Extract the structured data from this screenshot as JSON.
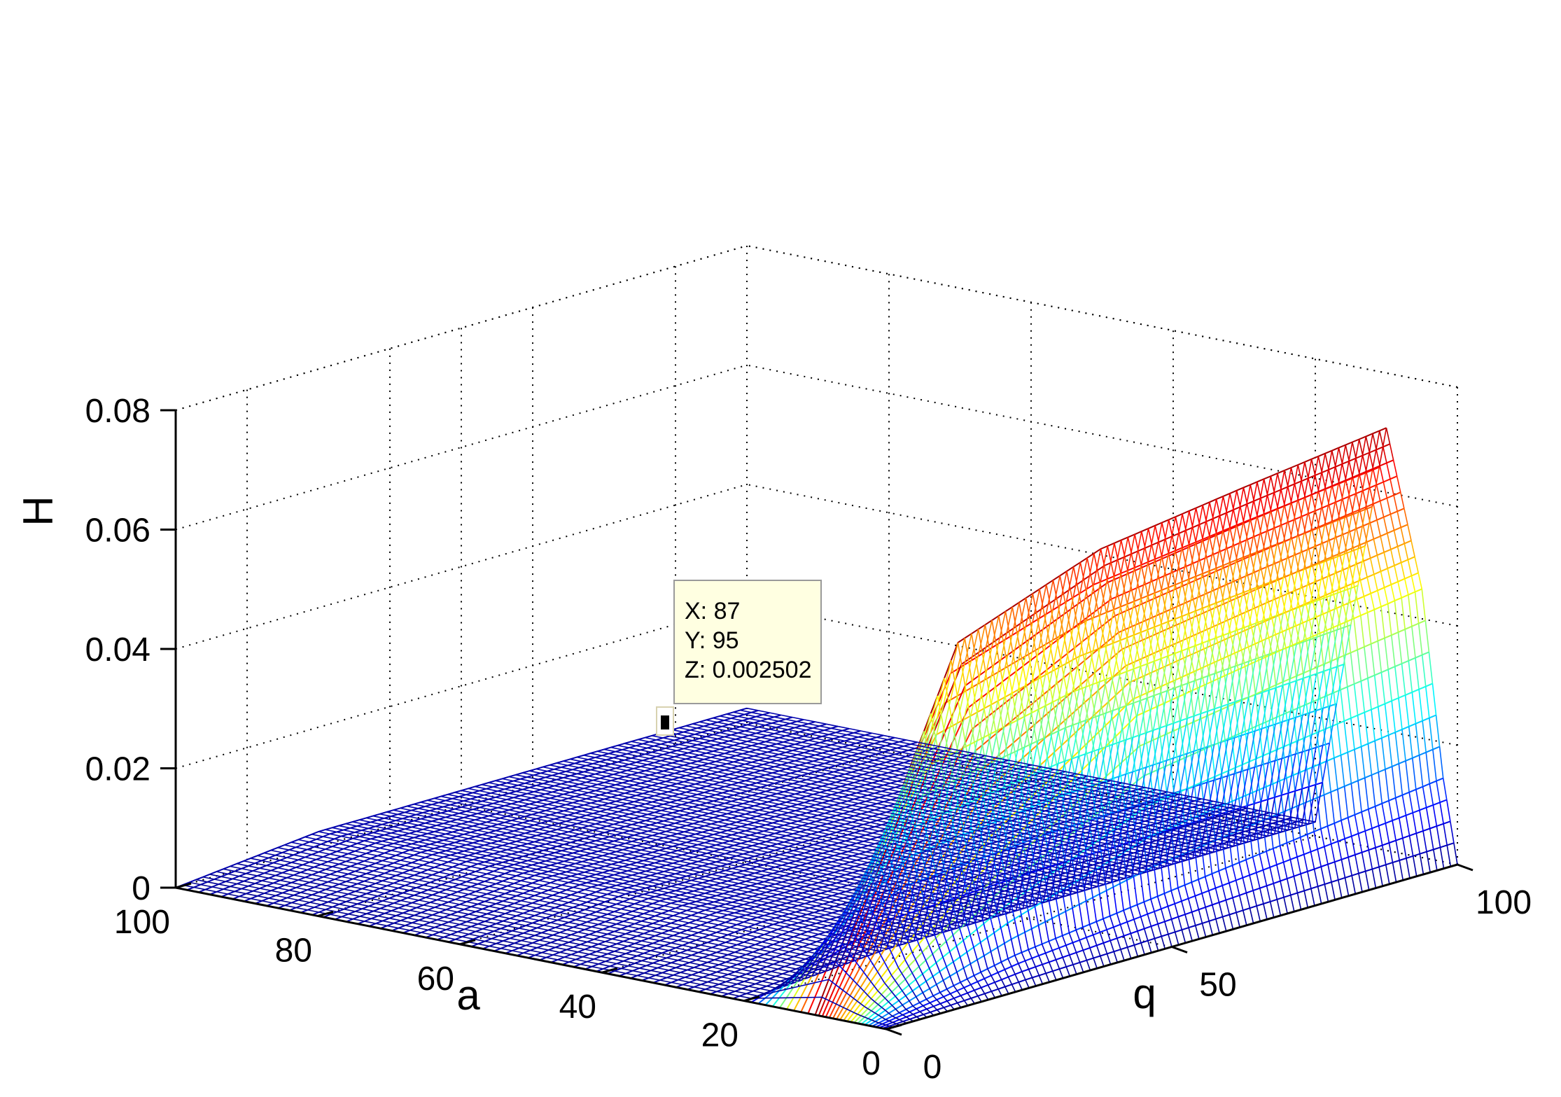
{
  "chart_data": {
    "type": "surface",
    "title": "",
    "xlabel": "q",
    "ylabel": "a",
    "zlabel": "H",
    "xlim": [
      0,
      100
    ],
    "ylim": [
      0,
      100
    ],
    "zlim": [
      0,
      0.08
    ],
    "x_ticks": [
      0,
      50,
      100
    ],
    "x_tick_labels": [
      "0",
      "50",
      "100"
    ],
    "y_ticks": [
      0,
      20,
      40,
      60,
      80,
      100
    ],
    "y_tick_labels": [
      "0",
      "20",
      "40",
      "60",
      "80",
      "100"
    ],
    "z_ticks": [
      0,
      0.02,
      0.04,
      0.06,
      0.08
    ],
    "z_tick_labels": [
      "0",
      "0.02",
      "0.04",
      "0.06",
      "0.08"
    ],
    "grid": true,
    "colormap": [
      "#00008f",
      "#0000ff",
      "#0080ff",
      "#00ffff",
      "#80ff80",
      "#ffff00",
      "#ff8000",
      "#ff0000",
      "#800000"
    ],
    "surface_samples": {
      "q": [
        0,
        25,
        50,
        75,
        100
      ],
      "a": [
        0,
        2,
        5,
        10,
        20,
        40,
        60,
        80,
        100
      ],
      "H": [
        [
          0.0,
          0.0,
          0.0,
          0.0,
          0.0
        ],
        [
          0.0,
          0.005,
          0.008,
          0.011,
          0.014
        ],
        [
          0.0,
          0.0205,
          0.0375,
          0.0415,
          0.045
        ],
        [
          0.0,
          0.0555,
          0.0643,
          0.0677,
          0.0708
        ],
        [
          0.0,
          0.0018,
          0.002,
          0.0022,
          0.0024
        ],
        [
          0.0,
          0.0022,
          0.0023,
          0.0024,
          0.0025
        ],
        [
          0.0,
          0.0023,
          0.0024,
          0.0025,
          0.0025
        ],
        [
          0.0,
          0.0024,
          0.0025,
          0.0025,
          0.0025
        ],
        [
          0.0,
          0.0025,
          0.0025,
          0.0025,
          0.0025
        ]
      ]
    },
    "datatip": {
      "x": "X: 87",
      "y": "Y: 95",
      "z": "Z: 0.002502"
    }
  }
}
